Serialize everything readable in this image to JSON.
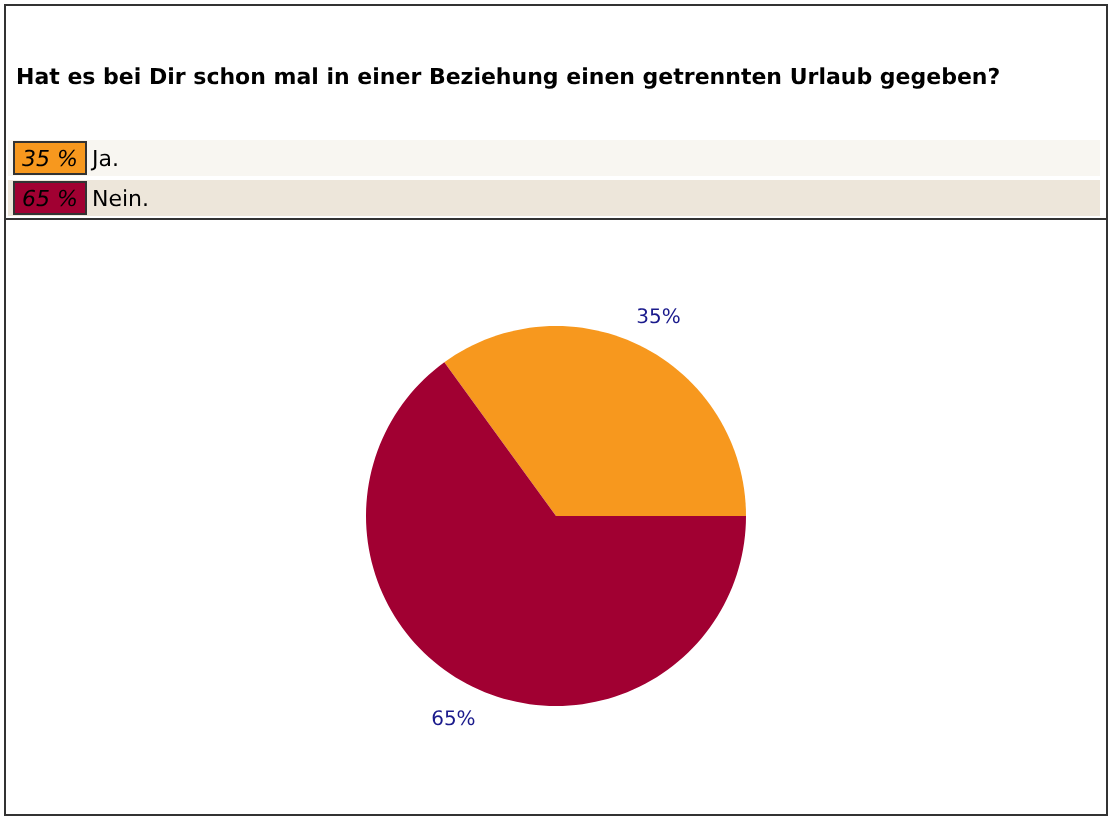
{
  "chart_data": {
    "type": "pie",
    "title": "Hat es bei Dir schon mal in einer Beziehung einen getrennten Urlaub gegeben?",
    "categories": [
      "Ja.",
      "Nein."
    ],
    "values": [
      35,
      65
    ],
    "colors": [
      "#f7981e",
      "#a10032"
    ],
    "value_labels": [
      "35%",
      "65%"
    ],
    "annotations": [
      "35 %",
      "65 %"
    ],
    "legend": "top"
  }
}
